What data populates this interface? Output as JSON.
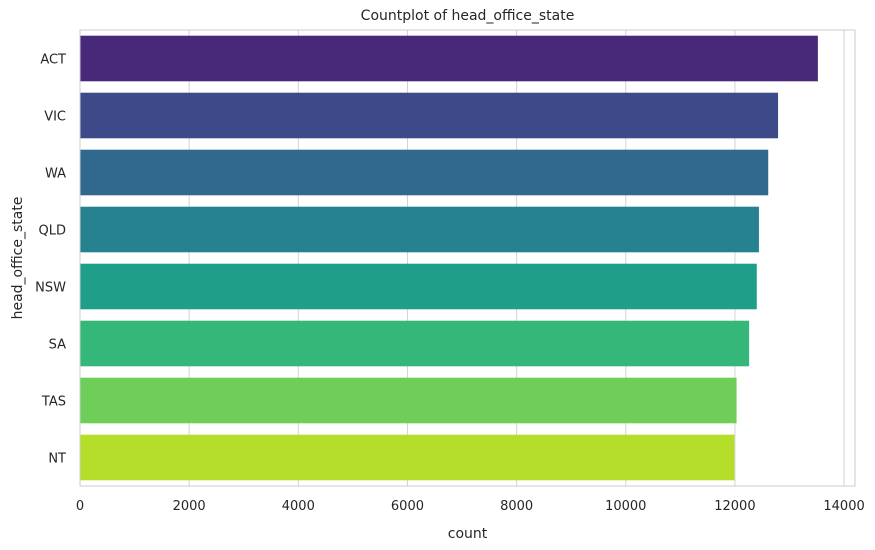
{
  "chart_data": {
    "type": "bar",
    "orientation": "horizontal",
    "title": "Countplot of head_office_state",
    "xlabel": "count",
    "ylabel": "head_office_state",
    "categories": [
      "ACT",
      "VIC",
      "WA",
      "QLD",
      "NSW",
      "SA",
      "TAS",
      "NT"
    ],
    "values": [
      13520,
      12790,
      12610,
      12440,
      12400,
      12260,
      12030,
      11990
    ],
    "xlim": [
      0,
      14200
    ],
    "xticks": [
      0,
      2000,
      4000,
      6000,
      8000,
      10000,
      12000,
      14000
    ],
    "grid": true,
    "legend": "none",
    "colors": [
      "#482878",
      "#3e4989",
      "#31688e",
      "#26828e",
      "#1f9e89",
      "#35b779",
      "#6ece58",
      "#b5de2b"
    ],
    "background": "#ffffff",
    "grid_color": "#d3d3d3",
    "spine_color": "#cccccc"
  }
}
